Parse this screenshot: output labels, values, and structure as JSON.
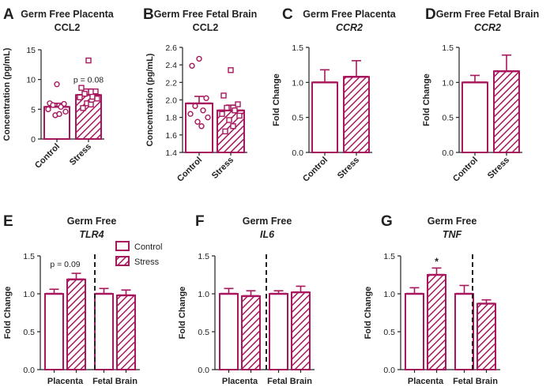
{
  "colors": {
    "accent": "#a8175d",
    "axis": "#222222",
    "text": "#222222"
  },
  "legend": {
    "entries": [
      "Control",
      "Stress"
    ]
  },
  "chart_data": [
    {
      "id": "A",
      "type": "bar",
      "title": "Germ Free Placenta",
      "subtitle": "CCL2",
      "ylabel": "Concentration (pg/mL)",
      "ylim": [
        0,
        15
      ],
      "yticks": [
        "0",
        "5",
        "10",
        "15"
      ],
      "categories": [
        "Control",
        "Stress"
      ],
      "values": [
        5.4,
        7.4
      ],
      "errors": [
        0.6,
        1.0
      ],
      "points": [
        [
          9.2,
          6.0,
          5.9,
          5.7,
          5.4,
          5.0,
          4.6,
          4.0,
          4.2
        ],
        [
          13.2,
          8.6,
          8.0,
          7.6,
          7.1,
          7.0,
          6.8,
          6.0,
          5.8,
          5.2
        ]
      ],
      "annotations": [
        {
          "text": "p = 0.08",
          "category": "Stress"
        }
      ]
    },
    {
      "id": "B",
      "type": "bar",
      "title": "Germ Free Fetal Brain",
      "subtitle": "CCL2",
      "ylabel": "Concentration (pg/mL)",
      "ylim": [
        1.4,
        2.6
      ],
      "yticks": [
        "1.4",
        "1.6",
        "1.8",
        "2.0",
        "2.2",
        "2.4",
        "2.6"
      ],
      "categories": [
        "Control",
        "Stress"
      ],
      "values": [
        1.96,
        1.88
      ],
      "errors": [
        0.08,
        0.06
      ],
      "points": [
        [
          2.47,
          2.39,
          2.02,
          1.93,
          1.88,
          1.84,
          1.8,
          1.75,
          1.7
        ],
        [
          2.34,
          2.05,
          1.95,
          1.91,
          1.88,
          1.84,
          1.82,
          1.77,
          1.7,
          1.64
        ]
      ],
      "annotations": []
    },
    {
      "id": "C",
      "type": "bar",
      "title": "Germ Free Placenta",
      "subtitle": "CCR2",
      "ylabel": "Fold Change",
      "ylim": [
        0,
        1.5
      ],
      "yticks": [
        "0.0",
        "0.5",
        "1.0",
        "1.5"
      ],
      "categories": [
        "Control",
        "Stress"
      ],
      "values": [
        1.0,
        1.08
      ],
      "errors": [
        0.18,
        0.23
      ],
      "annotations": []
    },
    {
      "id": "D",
      "type": "bar",
      "title": "Germ Free Fetal Brain",
      "subtitle": "CCR2",
      "ylabel": "Fold Change",
      "ylim": [
        0,
        1.5
      ],
      "yticks": [
        "0.0",
        "0.5",
        "1.0",
        "1.5"
      ],
      "categories": [
        "Control",
        "Stress"
      ],
      "values": [
        1.0,
        1.16
      ],
      "errors": [
        0.1,
        0.23
      ],
      "annotations": []
    },
    {
      "id": "E",
      "type": "bar",
      "title": "Germ Free",
      "subtitle": "TLR4",
      "ylabel": "Fold Change",
      "ylim": [
        0,
        1.5
      ],
      "yticks": [
        "0.0",
        "0.5",
        "1.0",
        "1.5"
      ],
      "categories": [
        "Placenta",
        "Fetal Brain"
      ],
      "series": [
        {
          "name": "Control",
          "values": [
            1.0,
            1.0
          ],
          "errors": [
            0.06,
            0.07
          ]
        },
        {
          "name": "Stress",
          "values": [
            1.19,
            0.98
          ],
          "errors": [
            0.08,
            0.07
          ]
        }
      ],
      "annotations": [
        {
          "text": "p = 0.09",
          "category": "Placenta"
        }
      ]
    },
    {
      "id": "F",
      "type": "bar",
      "title": "Germ Free",
      "subtitle": "IL6",
      "ylabel": "Fold Change",
      "ylim": [
        0,
        1.5
      ],
      "yticks": [
        "0.0",
        "0.5",
        "1.0",
        "1.5"
      ],
      "categories": [
        "Placenta",
        "Fetal Brain"
      ],
      "series": [
        {
          "name": "Control",
          "values": [
            1.0,
            1.0
          ],
          "errors": [
            0.07,
            0.04
          ]
        },
        {
          "name": "Stress",
          "values": [
            0.97,
            1.02
          ],
          "errors": [
            0.07,
            0.08
          ]
        }
      ],
      "annotations": []
    },
    {
      "id": "G",
      "type": "bar",
      "title": "Germ Free",
      "subtitle": "TNF",
      "ylabel": "Fold Change",
      "ylim": [
        0,
        1.5
      ],
      "yticks": [
        "0.0",
        "0.5",
        "1.0",
        "1.5"
      ],
      "categories": [
        "Placenta",
        "Fetal Brain"
      ],
      "series": [
        {
          "name": "Control",
          "values": [
            1.0,
            1.0
          ],
          "errors": [
            0.08,
            0.11
          ]
        },
        {
          "name": "Stress",
          "values": [
            1.25,
            0.87
          ],
          "errors": [
            0.09,
            0.05
          ]
        }
      ],
      "annotations": [
        {
          "text": "*",
          "category": "Placenta"
        }
      ]
    }
  ]
}
